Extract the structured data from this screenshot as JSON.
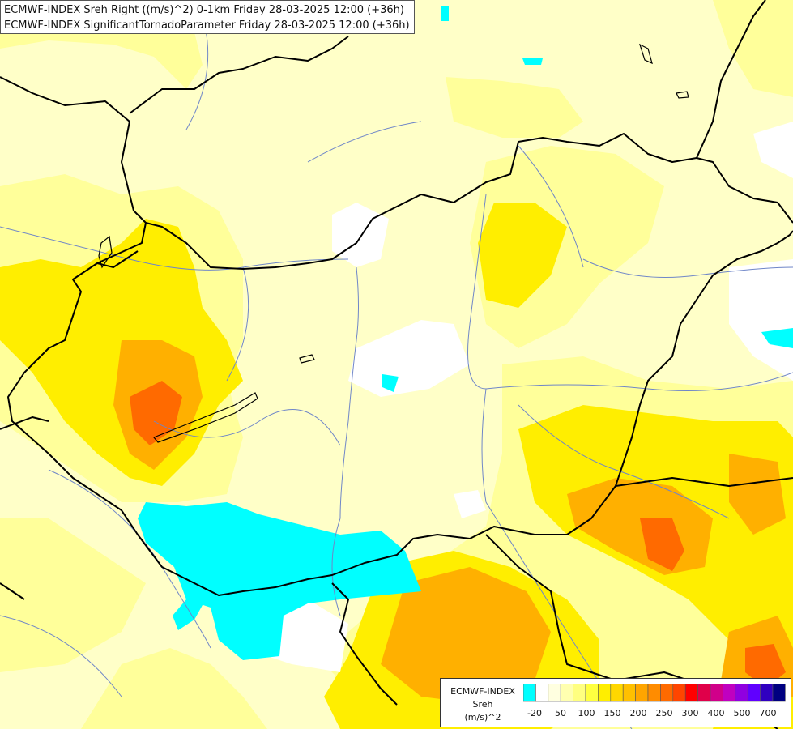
{
  "titles": {
    "line1": "ECMWF-INDEX Sreh Right ((m/s)^2) 0-1km Friday 28-03-2025 12:00 (+36h)",
    "line2": "ECMWF-INDEX SignificantTornadoParameter Friday 28-03-2025 12:00 (+36h)"
  },
  "legend": {
    "title1": "ECMWF-INDEX",
    "title2": "Sreh",
    "unit": "(m/s)^2",
    "colors": [
      "#00ffff",
      "#ffffff",
      "#ffffe0",
      "#ffffb0",
      "#ffff80",
      "#ffff40",
      "#ffee00",
      "#ffd700",
      "#ffc000",
      "#ffa500",
      "#ff8c00",
      "#ff6a00",
      "#ff4500",
      "#ff0000",
      "#e0004a",
      "#d0008a",
      "#c000c0",
      "#9000e0",
      "#6000ff",
      "#3000c0",
      "#000080"
    ],
    "ticks": [
      "-20",
      "50",
      "100",
      "150",
      "200",
      "250",
      "300",
      "400",
      "500",
      "700"
    ]
  }
}
